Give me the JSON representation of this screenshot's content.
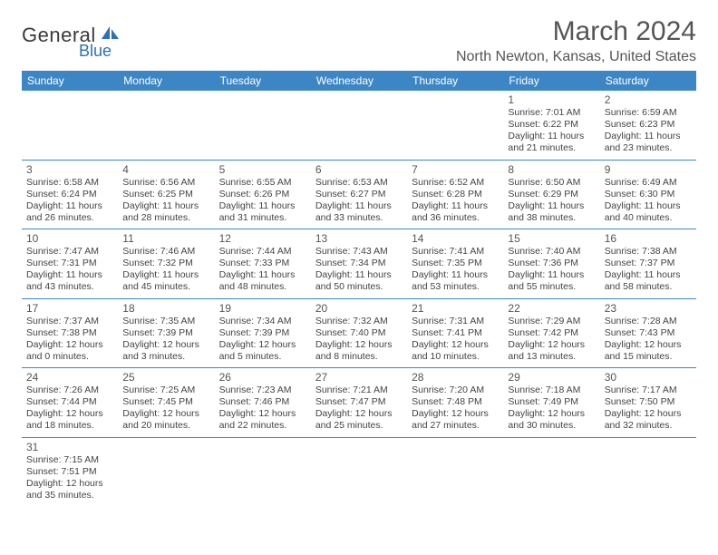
{
  "logo": {
    "text_main": "General",
    "text_sub": "Blue",
    "main_color": "#3a3a3a",
    "sub_color": "#2a71b8",
    "icon_color": "#2a71b8"
  },
  "title": "March 2024",
  "location": "North Newton, Kansas, United States",
  "header_bg": "#3d86c6",
  "header_text_color": "#ffffff",
  "divider_color": "#3d86c6",
  "text_color": "#444444",
  "day_num_color": "#555555",
  "background_color": "#ffffff",
  "font_family": "Arial",
  "title_fontsize": 30,
  "location_fontsize": 16,
  "weekday_fontsize": 12,
  "daynum_fontsize": 12,
  "dayline_fontsize": 10.5,
  "weekdays": [
    "Sunday",
    "Monday",
    "Tuesday",
    "Wednesday",
    "Thursday",
    "Friday",
    "Saturday"
  ],
  "weeks": [
    [
      null,
      null,
      null,
      null,
      null,
      {
        "num": "1",
        "sunrise": "7:01 AM",
        "sunset": "6:22 PM",
        "daylight": "11 hours and 21 minutes."
      },
      {
        "num": "2",
        "sunrise": "6:59 AM",
        "sunset": "6:23 PM",
        "daylight": "11 hours and 23 minutes."
      }
    ],
    [
      {
        "num": "3",
        "sunrise": "6:58 AM",
        "sunset": "6:24 PM",
        "daylight": "11 hours and 26 minutes."
      },
      {
        "num": "4",
        "sunrise": "6:56 AM",
        "sunset": "6:25 PM",
        "daylight": "11 hours and 28 minutes."
      },
      {
        "num": "5",
        "sunrise": "6:55 AM",
        "sunset": "6:26 PM",
        "daylight": "11 hours and 31 minutes."
      },
      {
        "num": "6",
        "sunrise": "6:53 AM",
        "sunset": "6:27 PM",
        "daylight": "11 hours and 33 minutes."
      },
      {
        "num": "7",
        "sunrise": "6:52 AM",
        "sunset": "6:28 PM",
        "daylight": "11 hours and 36 minutes."
      },
      {
        "num": "8",
        "sunrise": "6:50 AM",
        "sunset": "6:29 PM",
        "daylight": "11 hours and 38 minutes."
      },
      {
        "num": "9",
        "sunrise": "6:49 AM",
        "sunset": "6:30 PM",
        "daylight": "11 hours and 40 minutes."
      }
    ],
    [
      {
        "num": "10",
        "sunrise": "7:47 AM",
        "sunset": "7:31 PM",
        "daylight": "11 hours and 43 minutes."
      },
      {
        "num": "11",
        "sunrise": "7:46 AM",
        "sunset": "7:32 PM",
        "daylight": "11 hours and 45 minutes."
      },
      {
        "num": "12",
        "sunrise": "7:44 AM",
        "sunset": "7:33 PM",
        "daylight": "11 hours and 48 minutes."
      },
      {
        "num": "13",
        "sunrise": "7:43 AM",
        "sunset": "7:34 PM",
        "daylight": "11 hours and 50 minutes."
      },
      {
        "num": "14",
        "sunrise": "7:41 AM",
        "sunset": "7:35 PM",
        "daylight": "11 hours and 53 minutes."
      },
      {
        "num": "15",
        "sunrise": "7:40 AM",
        "sunset": "7:36 PM",
        "daylight": "11 hours and 55 minutes."
      },
      {
        "num": "16",
        "sunrise": "7:38 AM",
        "sunset": "7:37 PM",
        "daylight": "11 hours and 58 minutes."
      }
    ],
    [
      {
        "num": "17",
        "sunrise": "7:37 AM",
        "sunset": "7:38 PM",
        "daylight": "12 hours and 0 minutes."
      },
      {
        "num": "18",
        "sunrise": "7:35 AM",
        "sunset": "7:39 PM",
        "daylight": "12 hours and 3 minutes."
      },
      {
        "num": "19",
        "sunrise": "7:34 AM",
        "sunset": "7:39 PM",
        "daylight": "12 hours and 5 minutes."
      },
      {
        "num": "20",
        "sunrise": "7:32 AM",
        "sunset": "7:40 PM",
        "daylight": "12 hours and 8 minutes."
      },
      {
        "num": "21",
        "sunrise": "7:31 AM",
        "sunset": "7:41 PM",
        "daylight": "12 hours and 10 minutes."
      },
      {
        "num": "22",
        "sunrise": "7:29 AM",
        "sunset": "7:42 PM",
        "daylight": "12 hours and 13 minutes."
      },
      {
        "num": "23",
        "sunrise": "7:28 AM",
        "sunset": "7:43 PM",
        "daylight": "12 hours and 15 minutes."
      }
    ],
    [
      {
        "num": "24",
        "sunrise": "7:26 AM",
        "sunset": "7:44 PM",
        "daylight": "12 hours and 18 minutes."
      },
      {
        "num": "25",
        "sunrise": "7:25 AM",
        "sunset": "7:45 PM",
        "daylight": "12 hours and 20 minutes."
      },
      {
        "num": "26",
        "sunrise": "7:23 AM",
        "sunset": "7:46 PM",
        "daylight": "12 hours and 22 minutes."
      },
      {
        "num": "27",
        "sunrise": "7:21 AM",
        "sunset": "7:47 PM",
        "daylight": "12 hours and 25 minutes."
      },
      {
        "num": "28",
        "sunrise": "7:20 AM",
        "sunset": "7:48 PM",
        "daylight": "12 hours and 27 minutes."
      },
      {
        "num": "29",
        "sunrise": "7:18 AM",
        "sunset": "7:49 PM",
        "daylight": "12 hours and 30 minutes."
      },
      {
        "num": "30",
        "sunrise": "7:17 AM",
        "sunset": "7:50 PM",
        "daylight": "12 hours and 32 minutes."
      }
    ],
    [
      {
        "num": "31",
        "sunrise": "7:15 AM",
        "sunset": "7:51 PM",
        "daylight": "12 hours and 35 minutes."
      },
      null,
      null,
      null,
      null,
      null,
      null
    ]
  ],
  "labels": {
    "sunrise_prefix": "Sunrise: ",
    "sunset_prefix": "Sunset: ",
    "daylight_prefix": "Daylight: "
  }
}
